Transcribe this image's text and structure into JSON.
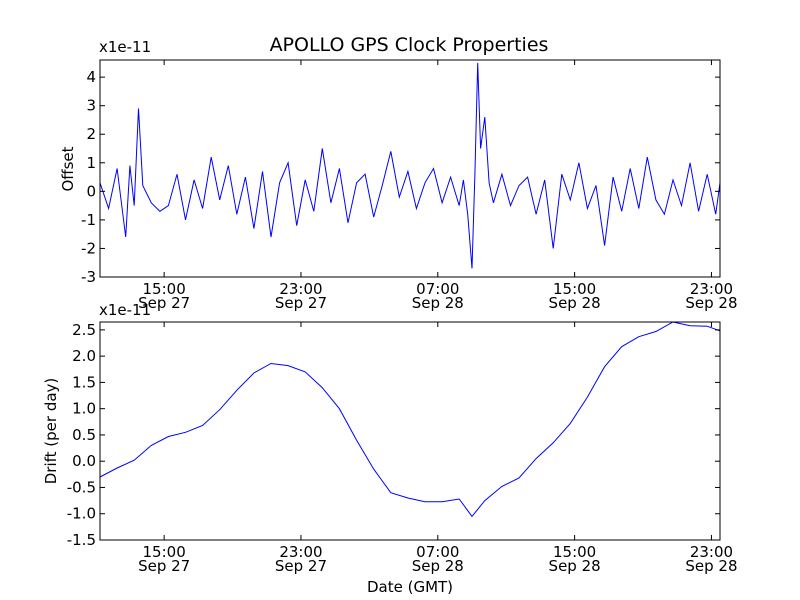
{
  "chart_data": [
    {
      "type": "line",
      "title": "APOLLO GPS Clock Properties",
      "xlabel": "",
      "ylabel": "Offset",
      "y_multiplier": "x1e-11",
      "ylim": [
        -3,
        4.6
      ],
      "yticks": [
        "4",
        "3",
        "2",
        "1",
        "0",
        "-1",
        "-2",
        "-3"
      ],
      "ytick_values": [
        4,
        3,
        2,
        1,
        0,
        -1,
        -2,
        -3
      ],
      "xlim": [
        "2012-09-27 11:15",
        "2012-09-28 23:30"
      ],
      "xticks": [
        {
          "time": "2012-09-27 15:00",
          "label_time": "15:00",
          "label_date": "Sep 27"
        },
        {
          "time": "2012-09-27 23:00",
          "label_time": "23:00",
          "label_date": "Sep 27"
        },
        {
          "time": "2012-09-28 07:00",
          "label_time": "07:00",
          "label_date": "Sep 28"
        },
        {
          "time": "2012-09-28 15:00",
          "label_time": "15:00",
          "label_date": "Sep 28"
        },
        {
          "time": "2012-09-28 23:00",
          "label_time": "23:00",
          "label_date": "Sep 28"
        }
      ],
      "grid": false,
      "series": [
        {
          "color": "#0000ff",
          "x": [
            "2012-09-27 11:15",
            "2012-09-27 11:45",
            "2012-09-27 12:15",
            "2012-09-27 12:45",
            "2012-09-27 13:00",
            "2012-09-27 13:15",
            "2012-09-27 13:30",
            "2012-09-27 13:45",
            "2012-09-27 14:15",
            "2012-09-27 14:45",
            "2012-09-27 15:15",
            "2012-09-27 15:45",
            "2012-09-27 16:15",
            "2012-09-27 16:45",
            "2012-09-27 17:15",
            "2012-09-27 17:45",
            "2012-09-27 18:15",
            "2012-09-27 18:45",
            "2012-09-27 19:15",
            "2012-09-27 19:45",
            "2012-09-27 20:15",
            "2012-09-27 20:45",
            "2012-09-27 21:15",
            "2012-09-27 21:45",
            "2012-09-27 22:15",
            "2012-09-27 22:45",
            "2012-09-27 23:15",
            "2012-09-27 23:45",
            "2012-09-28 00:15",
            "2012-09-28 00:45",
            "2012-09-28 01:15",
            "2012-09-28 01:45",
            "2012-09-28 02:15",
            "2012-09-28 02:45",
            "2012-09-28 03:15",
            "2012-09-28 03:45",
            "2012-09-28 04:15",
            "2012-09-28 04:45",
            "2012-09-28 05:15",
            "2012-09-28 05:45",
            "2012-09-28 06:15",
            "2012-09-28 06:45",
            "2012-09-28 07:15",
            "2012-09-28 07:45",
            "2012-09-28 08:15",
            "2012-09-28 08:30",
            "2012-09-28 08:45",
            "2012-09-28 09:00",
            "2012-09-28 09:10",
            "2012-09-28 09:20",
            "2012-09-28 09:30",
            "2012-09-28 09:45",
            "2012-09-28 10:00",
            "2012-09-28 10:15",
            "2012-09-28 10:45",
            "2012-09-28 11:15",
            "2012-09-28 11:45",
            "2012-09-28 12:15",
            "2012-09-28 12:45",
            "2012-09-28 13:15",
            "2012-09-28 13:45",
            "2012-09-28 14:15",
            "2012-09-28 14:45",
            "2012-09-28 15:15",
            "2012-09-28 15:45",
            "2012-09-28 16:15",
            "2012-09-28 16:45",
            "2012-09-28 17:15",
            "2012-09-28 17:45",
            "2012-09-28 18:15",
            "2012-09-28 18:45",
            "2012-09-28 19:15",
            "2012-09-28 19:45",
            "2012-09-28 20:15",
            "2012-09-28 20:45",
            "2012-09-28 21:15",
            "2012-09-28 21:45",
            "2012-09-28 22:15",
            "2012-09-28 22:45",
            "2012-09-28 23:15",
            "2012-09-28 23:30"
          ],
          "y": [
            0.3,
            -0.6,
            0.8,
            -1.6,
            0.9,
            -0.5,
            2.9,
            0.2,
            -0.4,
            -0.7,
            -0.5,
            0.6,
            -1.0,
            0.4,
            -0.6,
            1.2,
            -0.3,
            0.9,
            -0.8,
            0.5,
            -1.3,
            0.7,
            -1.6,
            0.3,
            1.0,
            -1.2,
            0.4,
            -0.7,
            1.5,
            -0.4,
            0.8,
            -1.1,
            0.3,
            0.6,
            -0.9,
            0.2,
            1.4,
            -0.2,
            0.7,
            -0.6,
            0.3,
            0.8,
            -0.4,
            0.5,
            -0.5,
            0.4,
            -0.8,
            -2.7,
            0.6,
            4.5,
            1.5,
            2.6,
            0.3,
            -0.4,
            0.6,
            -0.5,
            0.2,
            0.5,
            -0.8,
            0.4,
            -2.0,
            0.6,
            -0.3,
            1.0,
            -0.6,
            0.2,
            -1.9,
            0.5,
            -0.7,
            0.8,
            -0.6,
            1.2,
            -0.3,
            -0.8,
            0.4,
            -0.5,
            1.0,
            -0.7,
            0.6,
            -0.8,
            0.3
          ]
        }
      ]
    },
    {
      "type": "line",
      "title": "",
      "xlabel": "Date (GMT)",
      "ylabel": "Drift (per day)",
      "y_multiplier": "x1e-11",
      "ylim": [
        -1.5,
        2.65
      ],
      "yticks": [
        "2.5",
        "2.0",
        "1.5",
        "1.0",
        "0.5",
        "0.0",
        "-0.5",
        "-1.0",
        "-1.5"
      ],
      "ytick_values": [
        2.5,
        2.0,
        1.5,
        1.0,
        0.5,
        0.0,
        -0.5,
        -1.0,
        -1.5
      ],
      "xlim": [
        "2012-09-27 11:15",
        "2012-09-28 23:30"
      ],
      "xticks": [
        {
          "time": "2012-09-27 15:00",
          "label_time": "15:00",
          "label_date": "Sep 27"
        },
        {
          "time": "2012-09-27 23:00",
          "label_time": "23:00",
          "label_date": "Sep 27"
        },
        {
          "time": "2012-09-28 07:00",
          "label_time": "07:00",
          "label_date": "Sep 28"
        },
        {
          "time": "2012-09-28 15:00",
          "label_time": "15:00",
          "label_date": "Sep 28"
        },
        {
          "time": "2012-09-28 23:00",
          "label_time": "23:00",
          "label_date": "Sep 28"
        }
      ],
      "grid": false,
      "series": [
        {
          "color": "#0000ff",
          "x": [
            "2012-09-27 11:15",
            "2012-09-27 12:15",
            "2012-09-27 13:15",
            "2012-09-27 14:15",
            "2012-09-27 15:15",
            "2012-09-27 16:15",
            "2012-09-27 17:15",
            "2012-09-27 18:15",
            "2012-09-27 19:15",
            "2012-09-27 20:15",
            "2012-09-27 21:15",
            "2012-09-27 22:15",
            "2012-09-27 23:15",
            "2012-09-28 00:15",
            "2012-09-28 01:15",
            "2012-09-28 02:15",
            "2012-09-28 03:15",
            "2012-09-28 04:15",
            "2012-09-28 05:15",
            "2012-09-28 06:15",
            "2012-09-28 07:15",
            "2012-09-28 08:15",
            "2012-09-28 09:00",
            "2012-09-28 09:45",
            "2012-09-28 10:45",
            "2012-09-28 11:45",
            "2012-09-28 12:45",
            "2012-09-28 13:45",
            "2012-09-28 14:45",
            "2012-09-28 15:45",
            "2012-09-28 16:45",
            "2012-09-28 17:45",
            "2012-09-28 18:45",
            "2012-09-28 19:45",
            "2012-09-28 20:45",
            "2012-09-28 21:45",
            "2012-09-28 22:45",
            "2012-09-28 23:30"
          ],
          "y": [
            -0.3,
            -0.13,
            0.02,
            0.3,
            0.47,
            0.55,
            0.68,
            0.98,
            1.35,
            1.68,
            1.86,
            1.82,
            1.7,
            1.4,
            1.0,
            0.4,
            -0.15,
            -0.6,
            -0.7,
            -0.77,
            -0.77,
            -0.72,
            -1.05,
            -0.75,
            -0.48,
            -0.32,
            0.05,
            0.35,
            0.72,
            1.22,
            1.8,
            2.18,
            2.37,
            2.47,
            2.65,
            2.58,
            2.57,
            2.48
          ]
        }
      ]
    }
  ]
}
